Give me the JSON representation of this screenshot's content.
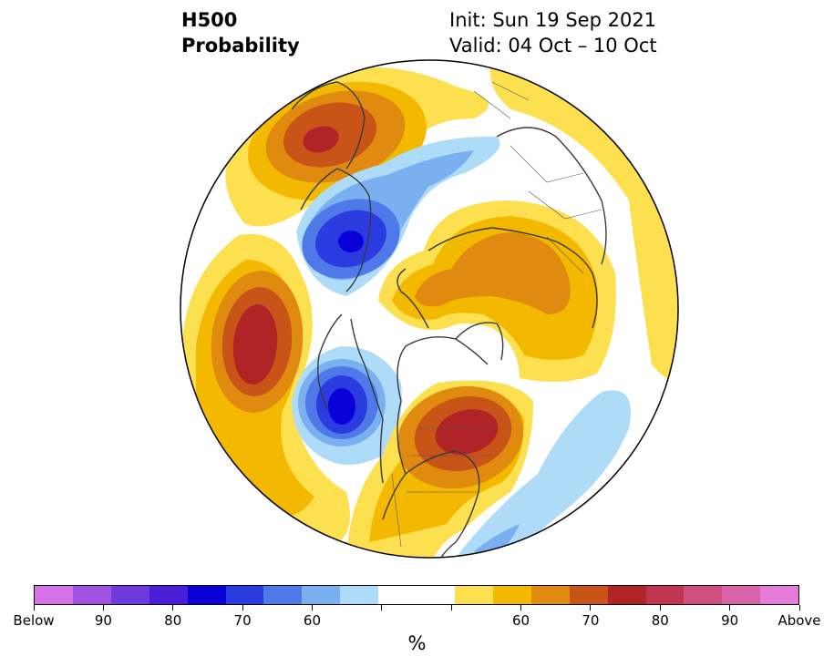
{
  "title": {
    "left_line1": "H500",
    "left_line2": "Probability",
    "right_line1": "Init: Sun 19 Sep 2021",
    "right_line2": "Valid: 04 Oct – 10 Oct"
  },
  "colorbar": {
    "colors": [
      "#d672e8",
      "#a152e0",
      "#6e3ae0",
      "#4a1fd8",
      "#0a00d8",
      "#2a3ce0",
      "#4f78e8",
      "#7ab0f0",
      "#aedcf8",
      "#ffffff",
      "#ffffff",
      "#fde050",
      "#f3b800",
      "#e08a10",
      "#c85418",
      "#b02428",
      "#c03650",
      "#d04e80",
      "#d862a8",
      "#e67ad8"
    ],
    "tick_labels": [
      "Below",
      "90",
      "80",
      "70",
      "60",
      "",
      "",
      "60",
      "70",
      "80",
      "90",
      "Above"
    ],
    "unit": "%"
  },
  "map": {
    "legend_colors": {
      "ring_yellow": "#fde050",
      "ring_gold": "#f3b800",
      "ring_orange": "#e08a10",
      "ring_rust": "#c85418",
      "ring_red": "#b02428",
      "ring_lightblue": "#aedcf8",
      "ring_skyblue": "#7ab0f0",
      "ring_blue": "#4f78e8",
      "ring_deepblue": "#2a3ce0",
      "ring_navy": "#0a00d8"
    }
  }
}
